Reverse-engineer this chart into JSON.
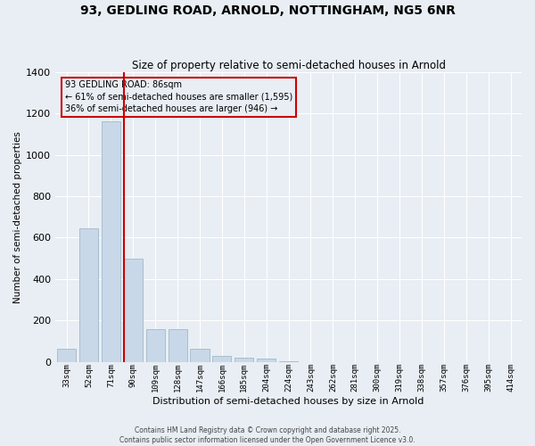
{
  "title1": "93, GEDLING ROAD, ARNOLD, NOTTINGHAM, NG5 6NR",
  "title2": "Size of property relative to semi-detached houses in Arnold",
  "xlabel": "Distribution of semi-detached houses by size in Arnold",
  "ylabel": "Number of semi-detached properties",
  "categories": [
    "33sqm",
    "52sqm",
    "71sqm",
    "90sqm",
    "109sqm",
    "128sqm",
    "147sqm",
    "166sqm",
    "185sqm",
    "204sqm",
    "224sqm",
    "243sqm",
    "262sqm",
    "281sqm",
    "300sqm",
    "319sqm",
    "338sqm",
    "357sqm",
    "376sqm",
    "395sqm",
    "414sqm"
  ],
  "values": [
    65,
    645,
    1160,
    500,
    160,
    160,
    65,
    30,
    20,
    15,
    5,
    0,
    0,
    0,
    0,
    0,
    0,
    0,
    0,
    0,
    0
  ],
  "bar_color": "#c8d8e8",
  "bar_edge_color": "#a8bece",
  "property_line_x": 3,
  "property_label": "93 GEDLING ROAD: 86sqm",
  "smaller_pct": "61%",
  "smaller_count": "1,595",
  "larger_pct": "36%",
  "larger_count": "946",
  "annotation_box_color": "#cc0000",
  "ylim": [
    0,
    1400
  ],
  "yticks": [
    0,
    200,
    400,
    600,
    800,
    1000,
    1200,
    1400
  ],
  "background_color": "#e8eef4",
  "grid_color": "#ffffff",
  "footer1": "Contains HM Land Registry data © Crown copyright and database right 2025.",
  "footer2": "Contains public sector information licensed under the Open Government Licence v3.0."
}
